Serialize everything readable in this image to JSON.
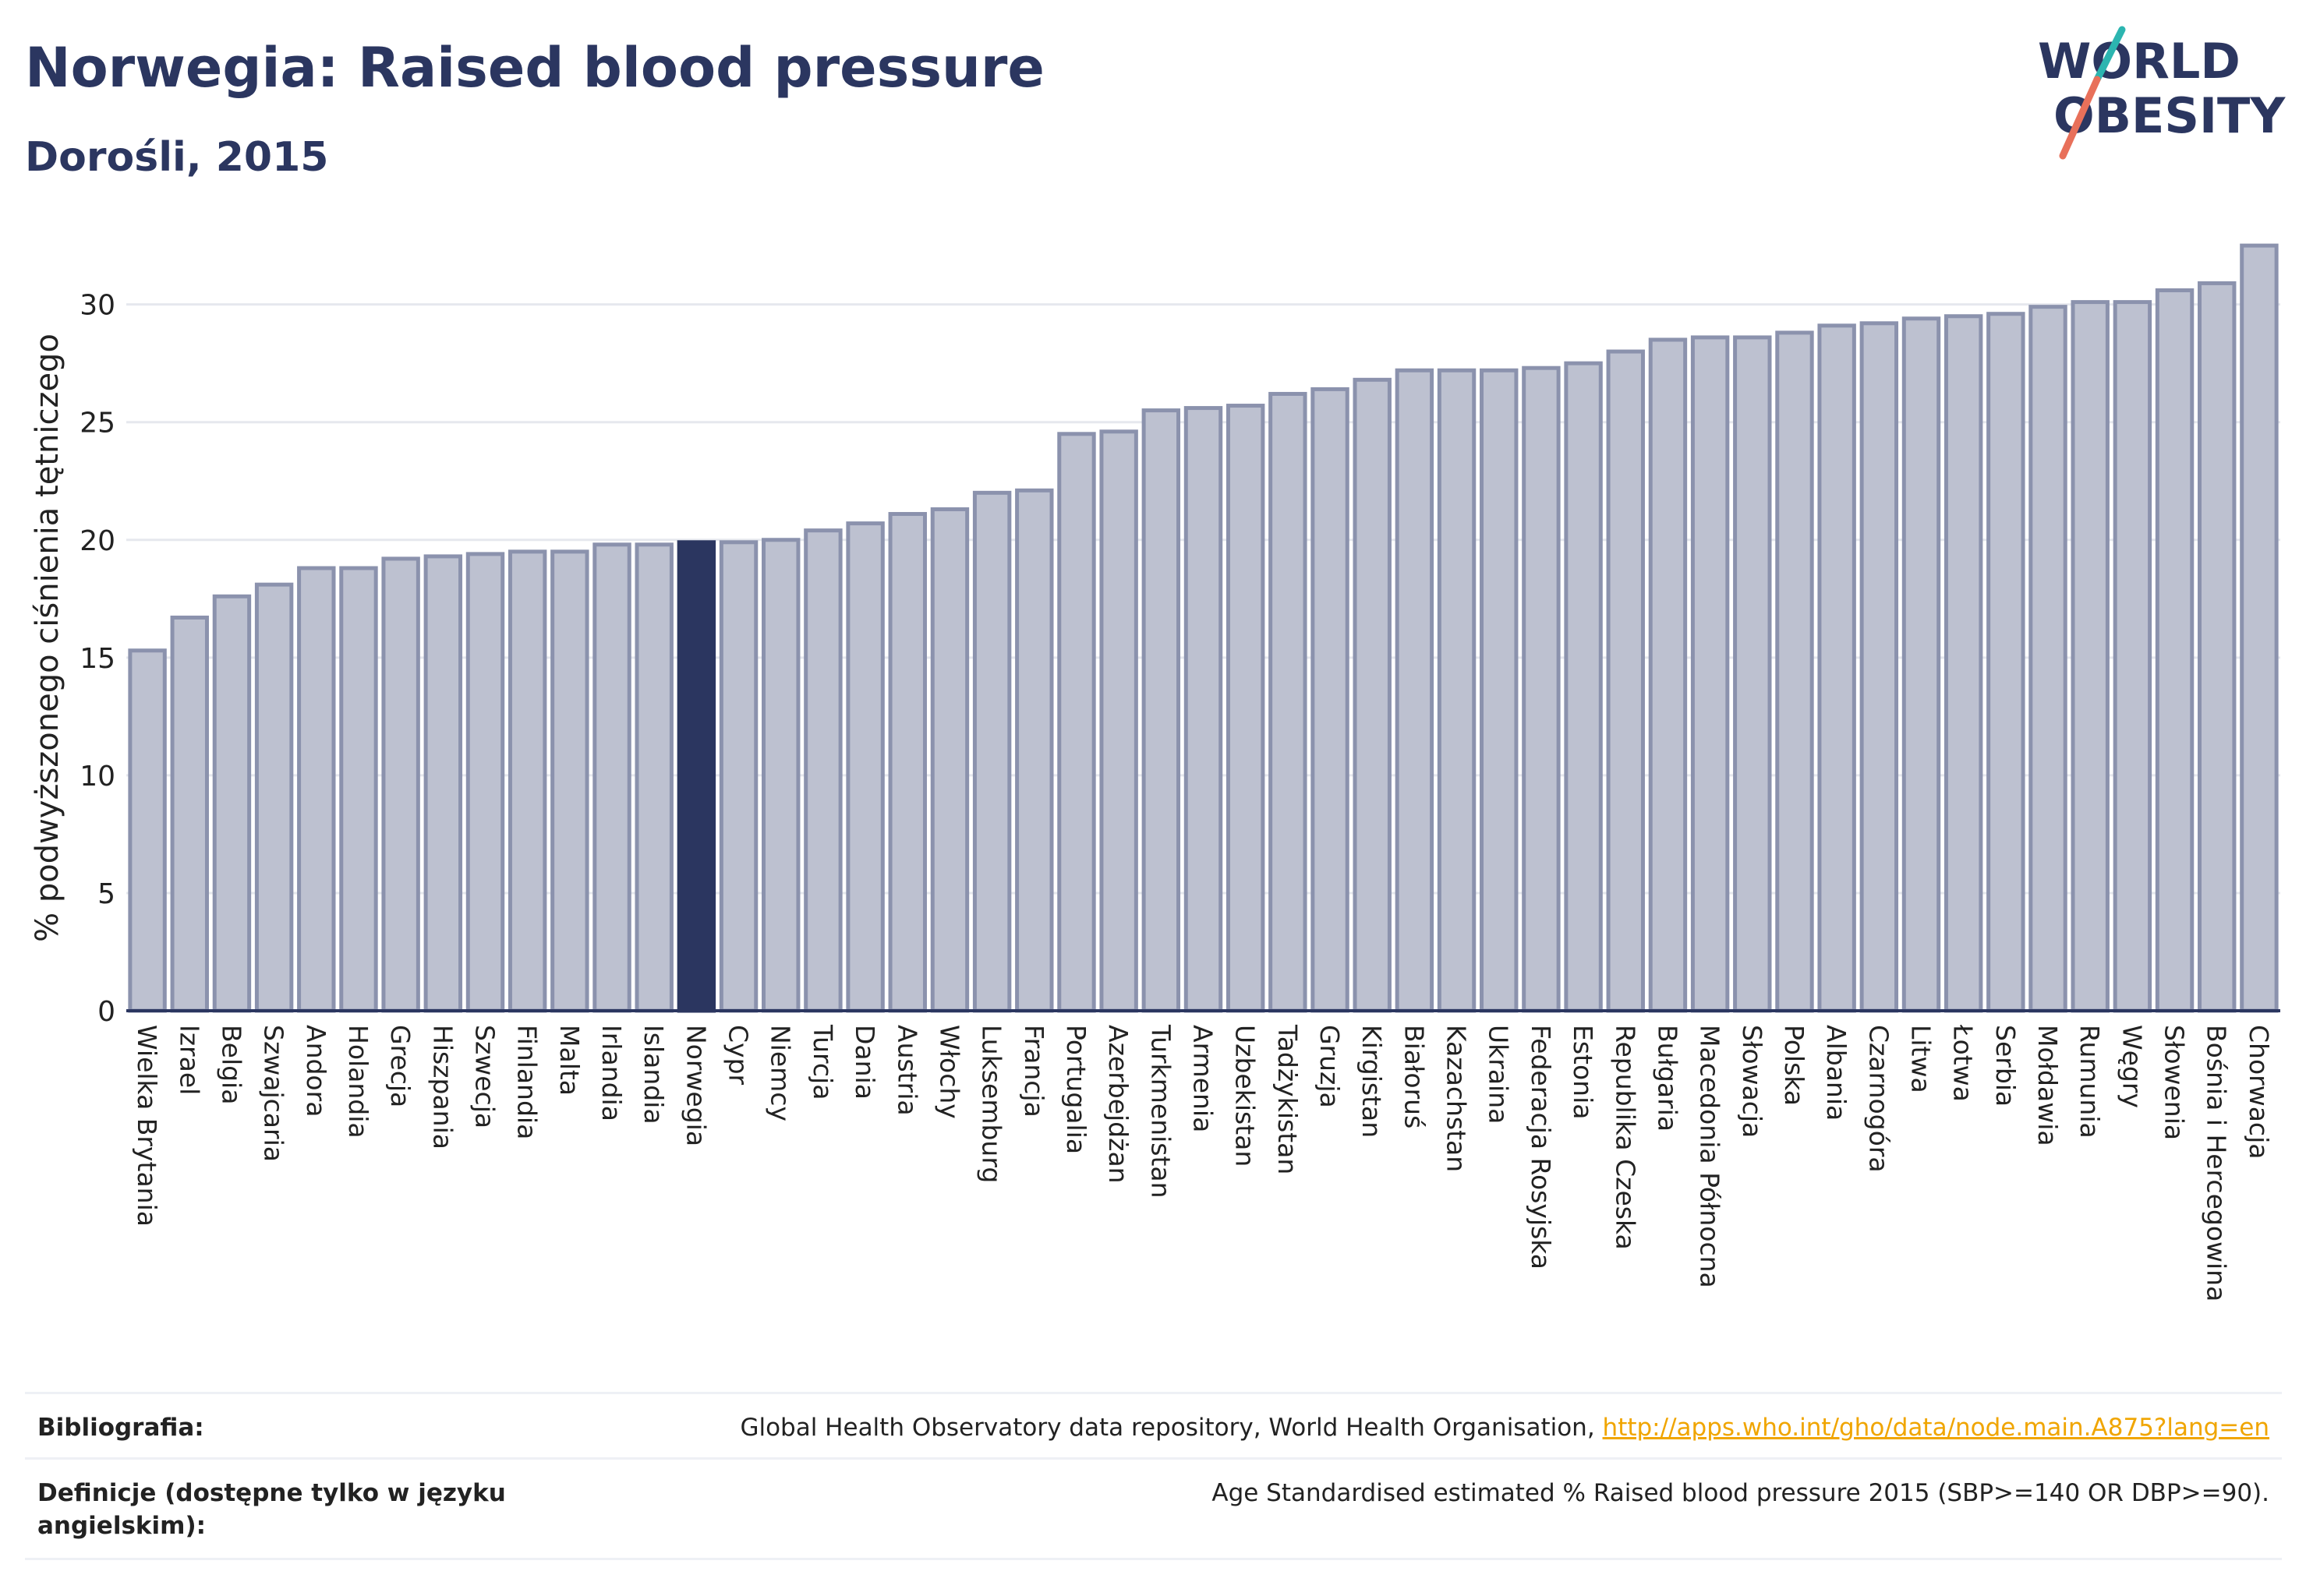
{
  "header": {
    "title": "Norwegia: Raised blood pressure",
    "subtitle": "Dorośli, 2015"
  },
  "logo": {
    "line1": "WORLD",
    "line2": "OBESITY"
  },
  "colors": {
    "bar": "#bdc1d0",
    "bar_stroke": "#8b92ad",
    "highlight": "#2b3660",
    "axis_text": "#222222",
    "gridline": "#e6e8ee",
    "logo_text": "#2b3660",
    "logo_slash_teal": "#2cb5b0",
    "logo_slash_red": "#e8705a",
    "link": "#f0a500"
  },
  "chart_data": {
    "type": "bar",
    "ylabel": "% podwyższonego ciśnienia tętniczego",
    "ylim": [
      0,
      33
    ],
    "yticks": [
      0,
      5,
      10,
      15,
      20,
      25,
      30
    ],
    "grid": true,
    "highlight": "Norwegia",
    "categories": [
      "Wielka Brytania",
      "Izrael",
      "Belgia",
      "Szwajcaria",
      "Andora",
      "Holandia",
      "Grecja",
      "Hiszpania",
      "Szwecja",
      "Finlandia",
      "Malta",
      "Irlandia",
      "Islandia",
      "Norwegia",
      "Cypr",
      "Niemcy",
      "Turcja",
      "Dania",
      "Austria",
      "Włochy",
      "Luksemburg",
      "Francja",
      "Portugalia",
      "Azerbejdżan",
      "Turkmenistan",
      "Armenia",
      "Uzbekistan",
      "Tadżykistan",
      "Gruzja",
      "Kirgistan",
      "Białoruś",
      "Kazachstan",
      "Ukraina",
      "Federacja Rosyjska",
      "Estonia",
      "Republika Czeska",
      "Bułgaria",
      "Macedonia Północna",
      "Słowacja",
      "Polska",
      "Albania",
      "Czarnogóra",
      "Litwa",
      "Łotwa",
      "Serbia",
      "Mołdawia",
      "Rumunia",
      "Węgry",
      "Słowenia",
      "Bośnia i Hercegowina",
      "Chorwacja"
    ],
    "values": [
      15.3,
      16.7,
      17.6,
      18.1,
      18.8,
      18.8,
      19.2,
      19.3,
      19.4,
      19.5,
      19.5,
      19.8,
      19.8,
      19.9,
      19.9,
      20.0,
      20.4,
      20.7,
      21.1,
      21.3,
      22.0,
      22.1,
      24.5,
      24.6,
      25.5,
      25.6,
      25.7,
      26.2,
      26.4,
      26.8,
      27.2,
      27.2,
      27.2,
      27.3,
      27.5,
      28.0,
      28.5,
      28.6,
      28.6,
      28.8,
      29.1,
      29.2,
      29.4,
      29.5,
      29.6,
      29.9,
      30.1,
      30.1,
      30.6,
      30.9,
      32.5
    ]
  },
  "footer": {
    "bibliography_label": "Bibliografia:",
    "bibliography_text": "Global Health Observatory data repository, World Health Organisation, ",
    "bibliography_link": "http://apps.who.int/gho/data/node.main.A875?lang=en",
    "definitions_label": "Definicje (dostępne tylko w języku angielskim):",
    "definitions_text": "Age Standardised estimated % Raised blood pressure 2015 (SBP>=140 OR DBP>=90)."
  }
}
